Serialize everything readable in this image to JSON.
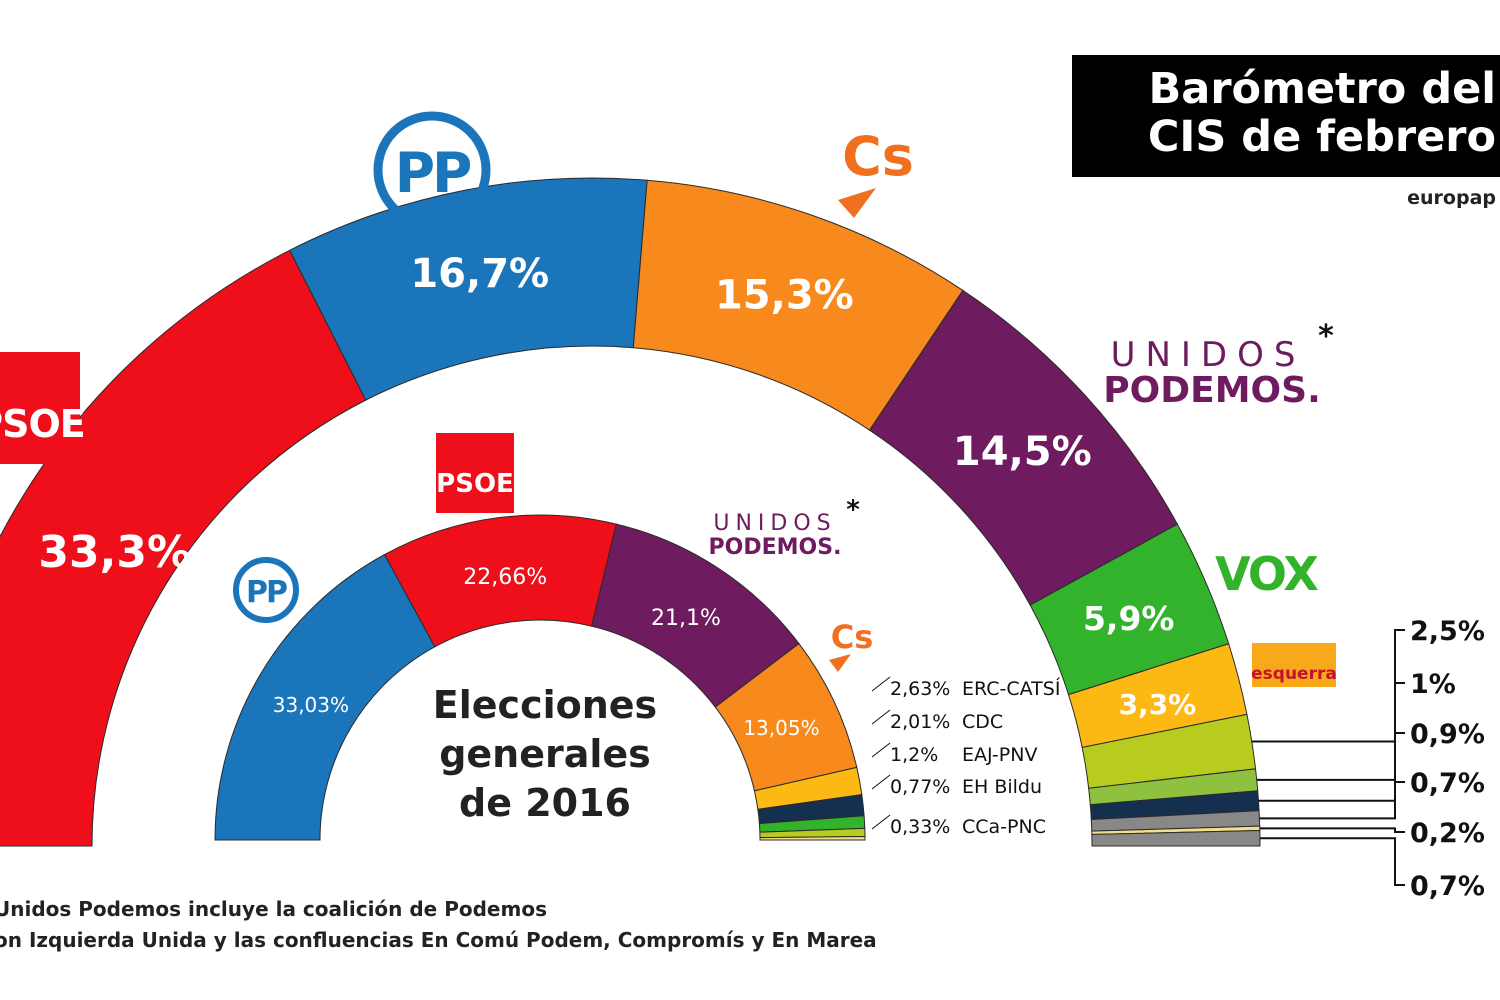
{
  "header": {
    "title_line1": "Barómetro del",
    "title_line2": "CIS de febrero",
    "source": "europap"
  },
  "footnote": {
    "line1": "Unidos Podemos incluye la coalición de Podemos",
    "line2": "on Izquierda Unida y las confluencias En Comú Podem, Compromís y En Marea"
  },
  "colors": {
    "psoe": "#ee0f1b",
    "pp": "#1b75bb",
    "cs": "#f7891d",
    "up": "#6f1b5f",
    "vox": "#32b32b",
    "erc": "#fcb813",
    "cdc": "#b7cc1f",
    "pnv": "#8ec13f",
    "bildu": "#15304e",
    "cca": "#f4e08a",
    "other": "#888888"
  },
  "chart_data": [
    {
      "type": "pie",
      "title": "Barómetro del CIS de febrero",
      "slices": [
        {
          "party": "PSOE",
          "value": 33.3,
          "label": "33,3%",
          "color_key": "psoe",
          "logo_text": "PSOE"
        },
        {
          "party": "PP",
          "value": 16.7,
          "label": "16,7%",
          "color_key": "pp",
          "logo_text": "PP"
        },
        {
          "party": "Cs",
          "value": 15.3,
          "label": "15,3%",
          "color_key": "cs",
          "logo_text": "Cs"
        },
        {
          "party": "Unidos Podemos",
          "value": 14.5,
          "label": "14,5%",
          "color_key": "up",
          "logo_text_1": "UNIDOS",
          "logo_text_2": "PODEMOS.",
          "asterisk": "*"
        },
        {
          "party": "Vox",
          "value": 5.9,
          "label": "5,9%",
          "color_key": "vox",
          "logo_text": "VOX"
        },
        {
          "party": "ERC",
          "value": 3.3,
          "label": "3,3%",
          "color_key": "erc",
          "logo_text": "esquerra"
        },
        {
          "party": "",
          "value": 2.5,
          "label": "2,5%",
          "color_key": "cdc"
        },
        {
          "party": "",
          "value": 1,
          "label": "1%",
          "color_key": "pnv"
        },
        {
          "party": "",
          "value": 0.9,
          "label": "0,9%",
          "color_key": "bildu"
        },
        {
          "party": "",
          "value": 0.7,
          "label": "0,7%",
          "color_key": "other"
        },
        {
          "party": "",
          "value": 0.2,
          "label": "0,2%",
          "color_key": "cca"
        },
        {
          "party": "",
          "value": 0.7,
          "label": "0,7%",
          "color_key": "other"
        }
      ]
    },
    {
      "type": "pie",
      "title": "Elecciones generales de 2016",
      "title_lines": [
        "Elecciones",
        "generales",
        "de 2016"
      ],
      "slices": [
        {
          "party": "PP",
          "value": 33.03,
          "label": "33,03%",
          "color_key": "pp",
          "logo_text": "PP"
        },
        {
          "party": "PSOE",
          "value": 22.66,
          "label": "22,66%",
          "color_key": "psoe",
          "logo_text": "PSOE"
        },
        {
          "party": "Unidos Podemos",
          "value": 21.1,
          "label": "21,1%",
          "color_key": "up",
          "logo_text_1": "UNIDOS",
          "logo_text_2": "PODEMOS.",
          "asterisk": "*"
        },
        {
          "party": "Cs",
          "value": 13.05,
          "label": "13,05%",
          "color_key": "cs",
          "logo_text": "Cs"
        },
        {
          "party": "ERC-CATSÍ",
          "value": 2.63,
          "label": "2,63%",
          "color_key": "erc"
        },
        {
          "party": "CDC",
          "value": 2.01,
          "label": "2,01%",
          "color_key": "bildu"
        },
        {
          "party": "EAJ-PNV",
          "value": 1.2,
          "label": "1,2%",
          "color_key": "vox"
        },
        {
          "party": "EH Bildu",
          "value": 0.77,
          "label": "0,77%",
          "color_key": "cdc"
        },
        {
          "party": "CCa-PNC",
          "value": 0.33,
          "label": "0,33%",
          "color_key": "cca"
        }
      ]
    }
  ]
}
